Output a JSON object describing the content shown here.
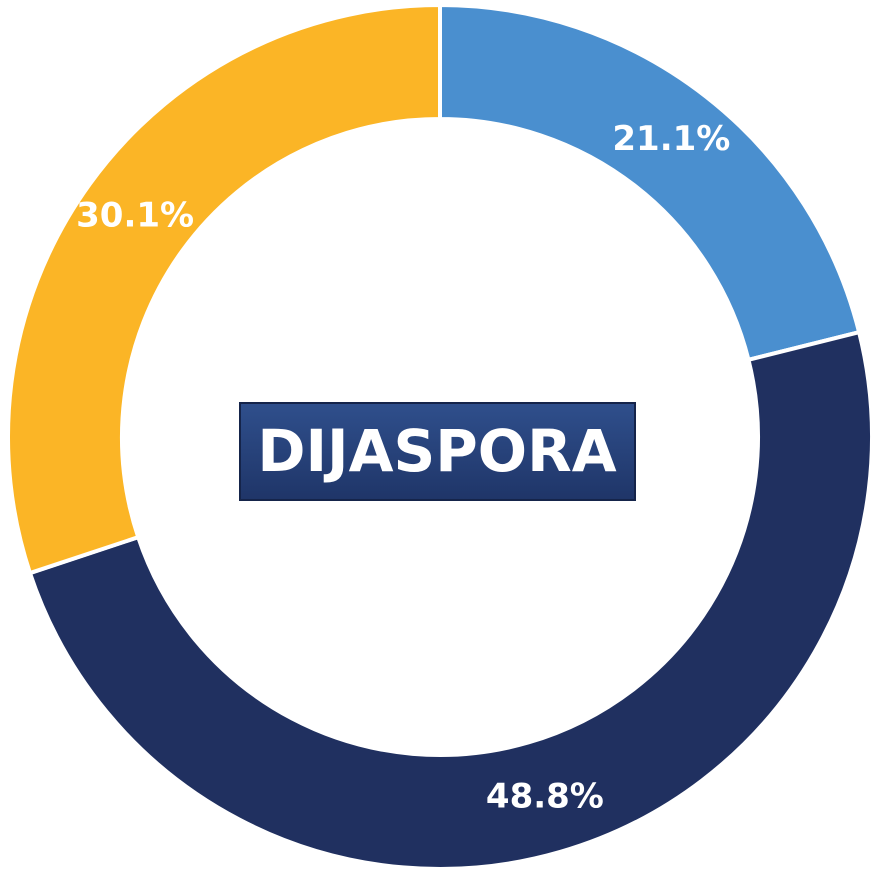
{
  "chart_data": {
    "type": "donut",
    "title": "DIJASPORA",
    "values": [
      21.1,
      48.8,
      30.1
    ],
    "value_labels": [
      "21.1%",
      "48.8%",
      "30.1%"
    ],
    "colors": [
      "#4a8fcf",
      "#203060",
      "#fbb526"
    ]
  }
}
